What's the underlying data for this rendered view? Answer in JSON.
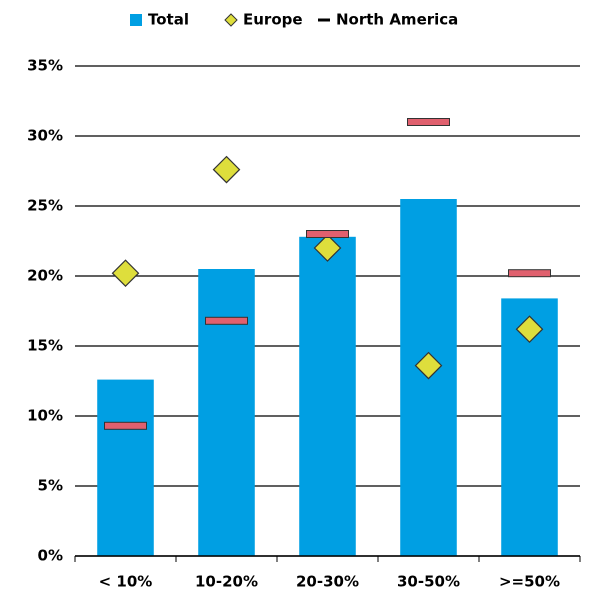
{
  "chart_data": {
    "type": "bar",
    "categories": [
      "< 10%",
      "10-20%",
      "20-30%",
      "30-50%",
      ">=50%"
    ],
    "series": [
      {
        "name": "Total",
        "color": "#009fe3",
        "mark": "bar",
        "values": [
          12.6,
          20.5,
          22.8,
          25.5,
          18.4
        ]
      },
      {
        "name": "Europe",
        "color": "#dede3c",
        "mark": "diamond",
        "values": [
          20.2,
          27.6,
          22.0,
          13.6,
          16.2
        ]
      },
      {
        "name": "North America",
        "color": "#e0606e",
        "mark": "dash",
        "values": [
          9.3,
          16.8,
          23.0,
          31.0,
          20.2
        ]
      }
    ],
    "ylim": [
      0,
      35
    ],
    "yticks": [
      {
        "value": 0,
        "label": "0%"
      },
      {
        "value": 5,
        "label": "5%"
      },
      {
        "value": 10,
        "label": "10%"
      },
      {
        "value": 15,
        "label": "15%"
      },
      {
        "value": 20,
        "label": "20%"
      },
      {
        "value": 25,
        "label": "25%"
      },
      {
        "value": 30,
        "label": "30%"
      },
      {
        "value": 35,
        "label": "35%"
      }
    ],
    "grid": true,
    "legend": "top"
  }
}
